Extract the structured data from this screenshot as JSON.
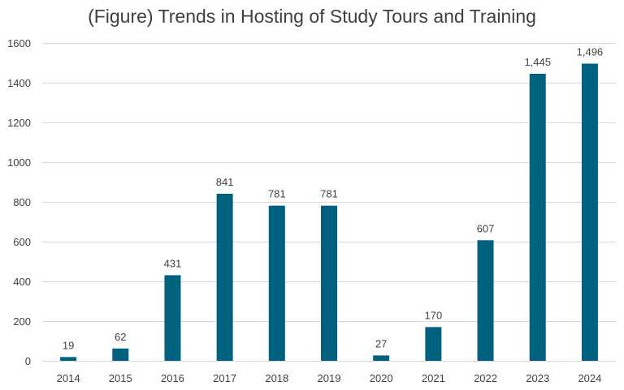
{
  "chart_data": {
    "type": "bar",
    "title": "(Figure) Trends in Hosting of Study Tours and Training",
    "xlabel": "",
    "ylabel": "",
    "categories": [
      "2014",
      "2015",
      "2016",
      "2017",
      "2018",
      "2019",
      "2020",
      "2021",
      "2022",
      "2023",
      "2024"
    ],
    "values": [
      19,
      62,
      431,
      841,
      781,
      781,
      27,
      170,
      607,
      1445,
      1496
    ],
    "value_labels": [
      "19",
      "62",
      "431",
      "841",
      "781",
      "781",
      "27",
      "170",
      "607",
      "1,445",
      "1,496"
    ],
    "ylim": [
      0,
      1600
    ],
    "yticks": [
      0,
      200,
      400,
      600,
      800,
      1000,
      1200,
      1400,
      1600
    ],
    "grid": true,
    "legend": "none",
    "bar_color": "#00627f",
    "grid_color": "#d9d9d9",
    "text_color": "#404040"
  }
}
